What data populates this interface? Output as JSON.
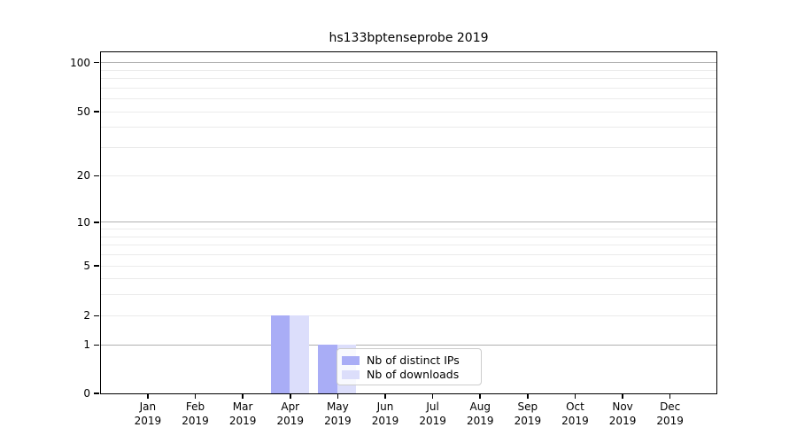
{
  "chart_data": {
    "type": "bar",
    "title": "hs133bptenseprobe 2019",
    "categories": [
      "Jan 2019",
      "Feb 2019",
      "Mar 2019",
      "Apr 2019",
      "May 2019",
      "Jun 2019",
      "Jul 2019",
      "Aug 2019",
      "Sep 2019",
      "Oct 2019",
      "Nov 2019",
      "Dec 2019"
    ],
    "series": [
      {
        "name": "Nb of distinct IPs",
        "color": "#a9adf6",
        "values": [
          0,
          0,
          0,
          2,
          1,
          0,
          0,
          0,
          0,
          0,
          0,
          0
        ]
      },
      {
        "name": "Nb of downloads",
        "color": "#dcdefb",
        "values": [
          0,
          0,
          0,
          2,
          1,
          0,
          0,
          0,
          0,
          0,
          0,
          0
        ]
      }
    ],
    "yscale": "log1p",
    "ylim": [
      0,
      117
    ],
    "ytick_values": [
      0,
      1,
      2,
      5,
      10,
      20,
      50,
      100
    ],
    "ytick_labels": [
      "0",
      "1",
      "2",
      "5",
      "10",
      "20",
      "50",
      "100"
    ],
    "major_grid_values": [
      1,
      10,
      100
    ],
    "minor_grid_values": [
      2,
      3,
      4,
      5,
      6,
      7,
      8,
      9,
      20,
      30,
      40,
      50,
      60,
      70,
      80,
      90
    ],
    "grid": true,
    "legend_position": "lower center-right, inside axes",
    "colors": {
      "background": "#ffffff",
      "axis": "#000000",
      "major_grid": "#b0b0b0",
      "minor_grid": "#ebebeb",
      "legend_border": "#cccccc",
      "text": "#000000"
    }
  }
}
